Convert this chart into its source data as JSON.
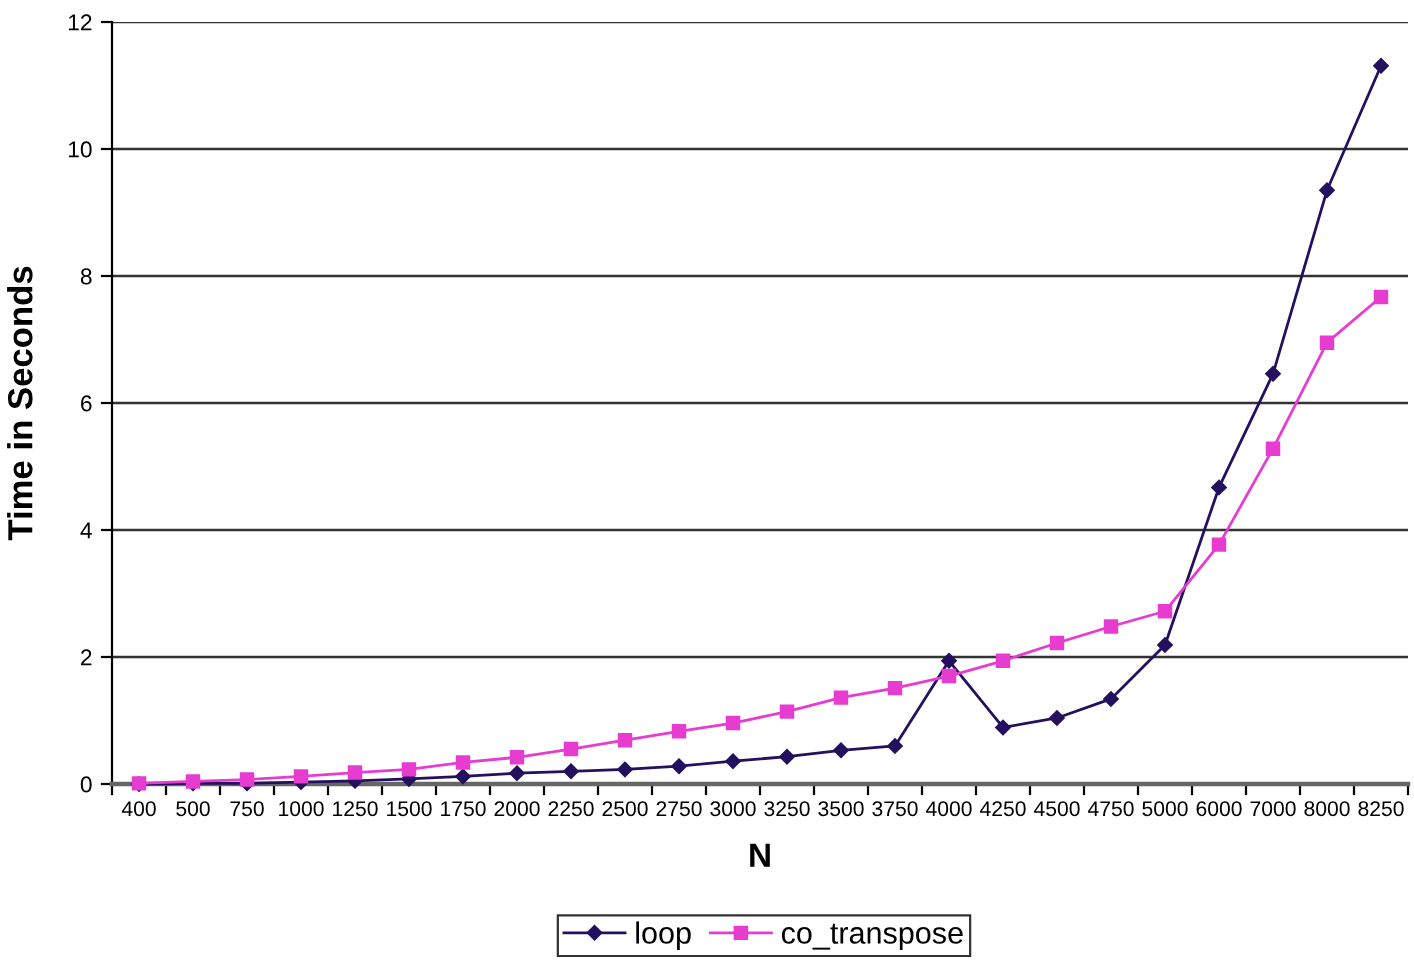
{
  "chart_data": {
    "type": "line",
    "xlabel": "N",
    "ylabel": "Time in Seconds",
    "categories": [
      "400",
      "500",
      "750",
      "1000",
      "1250",
      "1500",
      "1750",
      "2000",
      "2250",
      "2500",
      "2750",
      "3000",
      "3250",
      "3500",
      "3750",
      "4000",
      "4250",
      "4500",
      "4750",
      "5000",
      "6000",
      "7000",
      "8000",
      "8250"
    ],
    "ylim": [
      0,
      12
    ],
    "yticks": [
      0,
      2,
      4,
      6,
      8,
      10,
      12
    ],
    "grid": "y",
    "legend": "bottom",
    "line_style": "solid",
    "series": [
      {
        "name": "loop",
        "color": "#24105e",
        "marker": "diamond",
        "values": [
          0.0,
          0.01,
          0.01,
          0.03,
          0.05,
          0.08,
          0.12,
          0.17,
          0.2,
          0.23,
          0.28,
          0.36,
          0.43,
          0.53,
          0.6,
          1.94,
          0.89,
          1.04,
          1.34,
          2.19,
          4.67,
          6.46,
          9.35,
          11.31
        ]
      },
      {
        "name": "co_transpose",
        "color": "#e63ccf",
        "marker": "square",
        "values": [
          0.01,
          0.04,
          0.07,
          0.12,
          0.18,
          0.23,
          0.34,
          0.42,
          0.55,
          0.69,
          0.83,
          0.96,
          1.14,
          1.36,
          1.51,
          1.7,
          1.94,
          2.22,
          2.48,
          2.72,
          3.77,
          5.28,
          6.95,
          7.67
        ]
      }
    ]
  }
}
